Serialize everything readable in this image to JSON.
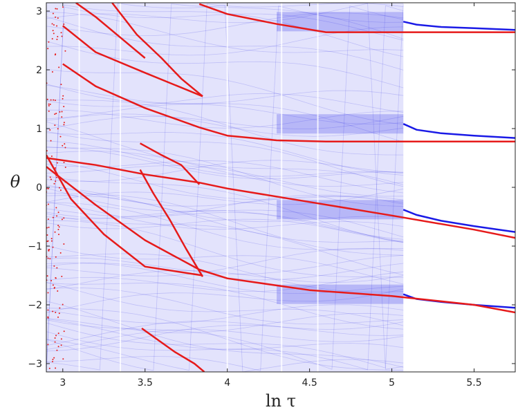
{
  "chart_data": {
    "type": "scatter",
    "title": "",
    "xlabel": "ln τ",
    "ylabel": "θ",
    "xlim": [
      2.9,
      5.75
    ],
    "ylim": [
      -3.1416,
      3.1416
    ],
    "xticks": [
      3,
      3.5,
      4,
      4.5,
      5,
      5.5
    ],
    "xtick_labels": [
      "3",
      "3.5",
      "4",
      "4.5",
      "5",
      "5.5"
    ],
    "yticks": [
      3,
      2,
      1,
      0,
      -1,
      -2,
      -3
    ],
    "ytick_labels": [
      "3",
      "2",
      "1",
      "0",
      "−1",
      "−2",
      "−3"
    ],
    "grid": false,
    "colors": {
      "blue": "#1a1ae6",
      "red": "#e61a1a"
    },
    "blue_dense_region_end": 5.07,
    "blue_series": [
      {
        "x": [
          5.07,
          5.15,
          5.3,
          5.5,
          5.75
        ],
        "y": [
          2.82,
          2.77,
          2.73,
          2.71,
          2.68
        ]
      },
      {
        "x": [
          5.07,
          5.15,
          5.3,
          5.5,
          5.75
        ],
        "y": [
          1.08,
          0.98,
          0.92,
          0.88,
          0.84
        ]
      },
      {
        "x": [
          5.07,
          5.15,
          5.3,
          5.5,
          5.75
        ],
        "y": [
          -0.38,
          -0.47,
          -0.57,
          -0.66,
          -0.76
        ]
      },
      {
        "x": [
          5.07,
          5.15,
          5.3,
          5.5,
          5.75
        ],
        "y": [
          -1.82,
          -1.9,
          -1.95,
          -2.0,
          -2.05
        ]
      }
    ],
    "red_series": [
      {
        "x": [
          3.83,
          4.0,
          4.3,
          4.6,
          5.0,
          5.3,
          5.75
        ],
        "y": [
          3.12,
          2.95,
          2.78,
          2.64,
          2.64,
          2.64,
          2.64
        ]
      },
      {
        "x": [
          3.0,
          3.2,
          3.5,
          3.83,
          4.0,
          4.3,
          4.6,
          5.0,
          5.3,
          5.75
        ],
        "y": [
          2.1,
          1.72,
          1.35,
          1.02,
          0.88,
          0.8,
          0.78,
          0.78,
          0.78,
          0.78
        ]
      },
      {
        "x": [
          2.9,
          3.2,
          3.5,
          3.83,
          4.0,
          4.5,
          5.0,
          5.5,
          5.75
        ],
        "y": [
          0.5,
          0.38,
          0.22,
          0.08,
          -0.02,
          -0.25,
          -0.48,
          -0.72,
          -0.86
        ]
      },
      {
        "x": [
          2.9,
          3.2,
          3.5,
          3.83,
          4.0,
          4.5,
          5.0,
          5.5,
          5.75
        ],
        "y": [
          0.35,
          -0.3,
          -0.9,
          -1.4,
          -1.55,
          -1.75,
          -1.85,
          -2.0,
          -2.13
        ]
      },
      {
        "x": [
          2.9,
          3.05,
          3.25,
          3.5,
          3.85
        ],
        "y": [
          0.55,
          -0.2,
          -0.8,
          -1.35,
          -1.5
        ]
      },
      {
        "x": [
          3.0,
          3.2,
          3.5,
          3.85
        ],
        "y": [
          2.75,
          2.3,
          1.95,
          1.55
        ]
      },
      {
        "x": [
          3.3,
          3.45,
          3.6,
          3.72,
          3.85
        ],
        "y": [
          3.14,
          2.6,
          2.2,
          1.85,
          1.55
        ]
      },
      {
        "x": [
          3.47,
          3.6,
          3.72,
          3.83
        ],
        "y": [
          0.75,
          0.55,
          0.38,
          0.05
        ]
      },
      {
        "x": [
          3.47,
          3.55,
          3.65,
          3.75,
          3.85
        ],
        "y": [
          0.3,
          -0.1,
          -0.55,
          -1.05,
          -1.52
        ]
      },
      {
        "x": [
          3.48,
          3.58,
          3.68,
          3.8,
          3.86
        ],
        "y": [
          -2.4,
          -2.6,
          -2.8,
          -3.0,
          -3.14
        ]
      },
      {
        "x": [
          3.08,
          3.2,
          3.35,
          3.5
        ],
        "y": [
          3.14,
          2.9,
          2.55,
          2.2
        ]
      }
    ]
  }
}
